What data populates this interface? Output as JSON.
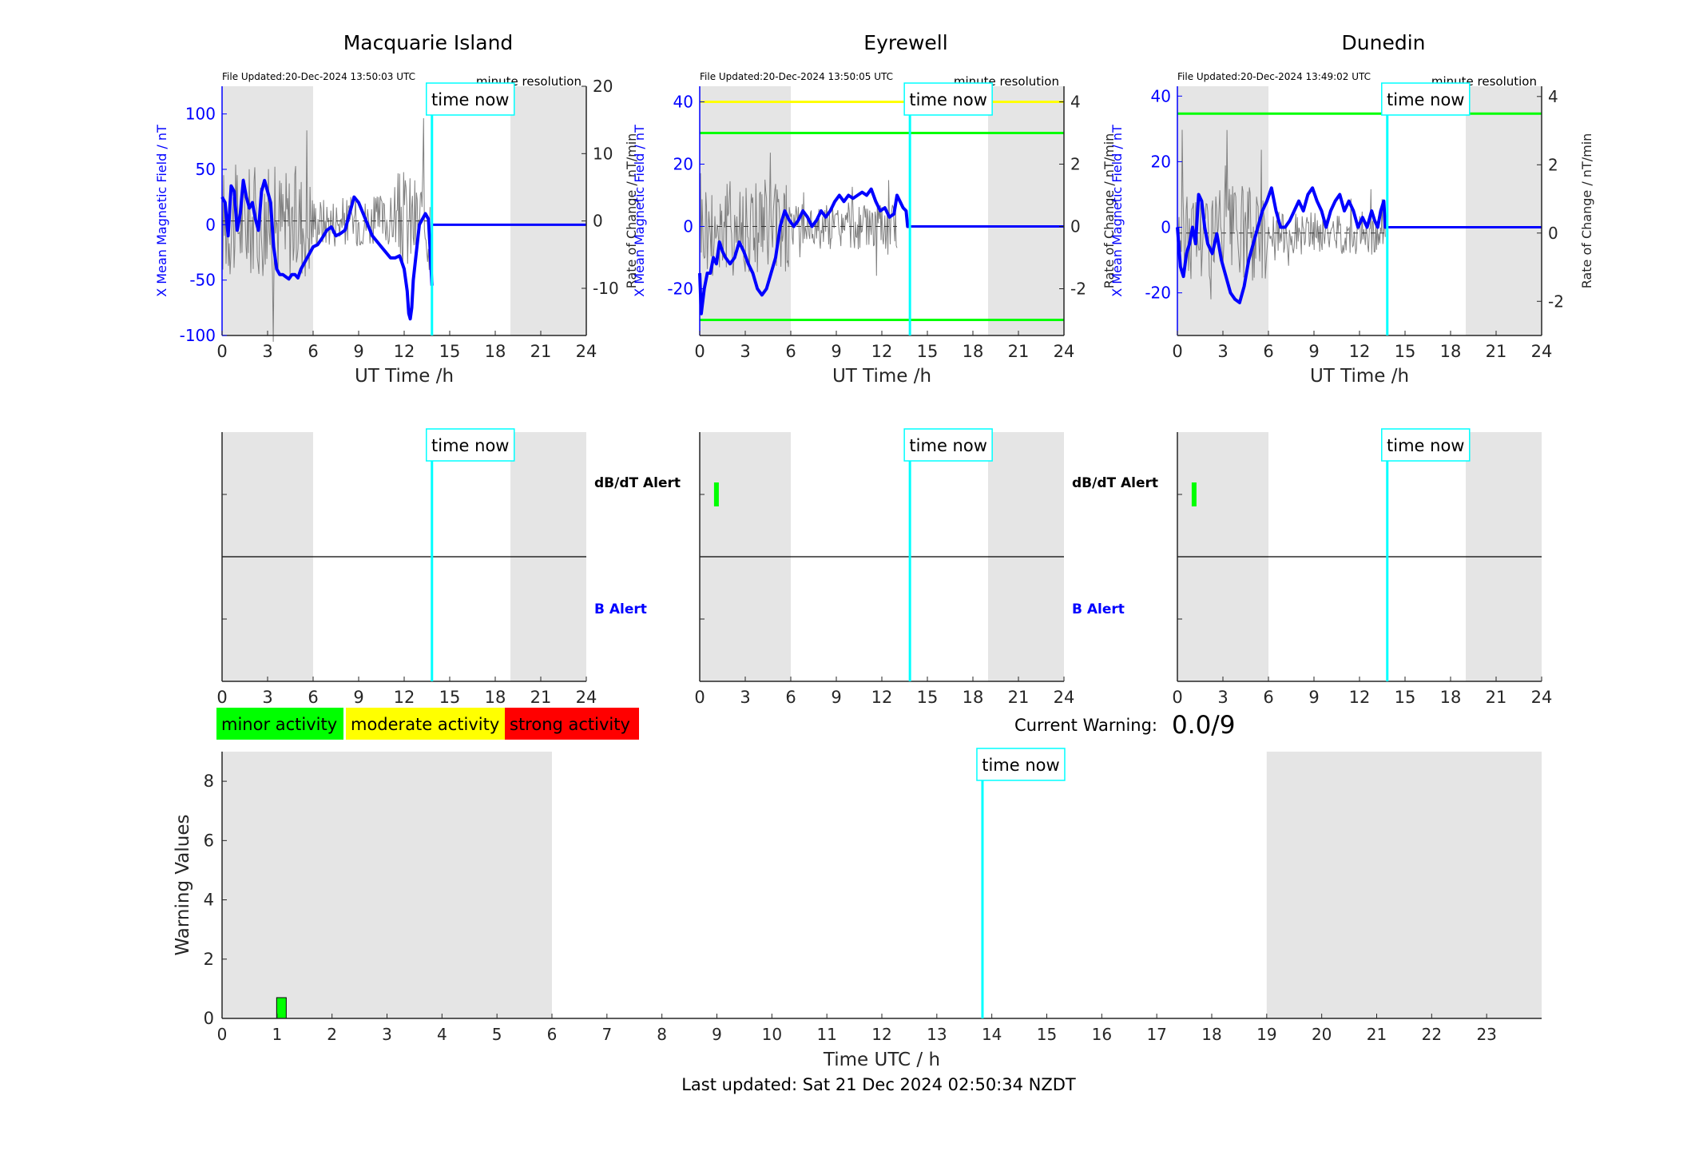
{
  "figure": {
    "current_warning_label": "Current Warning:",
    "current_warning_value": "0.0/9",
    "last_updated": "Last updated: Sat 21 Dec 2024 02:50:34 NZDT"
  },
  "legend": [
    {
      "label": "minor activity",
      "color": "#00ff00"
    },
    {
      "label": "moderate activity",
      "color": "#ffff00"
    },
    {
      "label": "strong activity",
      "color": "#ff0000"
    }
  ],
  "colors": {
    "field_line": "#0000ff",
    "rate_line": "#808080",
    "now_line": "#00ffff",
    "night_shade": "#e5e5e5",
    "minor_threshold": "#00ff00",
    "moderate_threshold": "#ffff00"
  },
  "chart_data": [
    {
      "id": "macquarie-field",
      "type": "line",
      "title": "Macquarie Island",
      "file_updated": "File Updated:20-Dec-2024 13:50:03 UTC",
      "resolution": "minute resolution",
      "now_label": "time now",
      "xlabel": "UT Time /h",
      "ylabel": "X Mean Magnetic Field / nT",
      "ylabel_right": "Rate of Change / nT/min",
      "xlim": [
        0,
        24
      ],
      "ylim": [
        -100,
        125
      ],
      "ylim_right": [
        -17,
        20
      ],
      "xticks": [
        0,
        3,
        6,
        9,
        12,
        15,
        18,
        21,
        24
      ],
      "yticks": [
        -100,
        -50,
        0,
        50,
        100
      ],
      "yticks_right": [
        -10,
        0,
        10,
        20
      ],
      "night": [
        [
          0,
          6
        ],
        [
          19,
          24
        ]
      ],
      "now": 13.83,
      "thresholds": [],
      "field": {
        "x": [
          0,
          0.2,
          0.4,
          0.6,
          0.8,
          1,
          1.2,
          1.4,
          1.6,
          1.8,
          2,
          2.2,
          2.4,
          2.6,
          2.8,
          3,
          3.2,
          3.4,
          3.6,
          3.8,
          4,
          4.2,
          4.4,
          4.6,
          4.8,
          5,
          5.2,
          5.4,
          5.6,
          5.8,
          6,
          6.3,
          6.6,
          6.9,
          7.2,
          7.5,
          7.8,
          8.1,
          8.4,
          8.7,
          9,
          9.3,
          9.6,
          9.9,
          10.2,
          10.5,
          10.8,
          11.1,
          11.4,
          11.7,
          12,
          12.2,
          12.3,
          12.4,
          12.5,
          12.6,
          12.8,
          13,
          13.2,
          13.4,
          13.6,
          13.7,
          13.83
        ],
        "y": [
          25,
          20,
          -10,
          35,
          30,
          -5,
          10,
          40,
          25,
          15,
          20,
          5,
          -5,
          30,
          40,
          30,
          20,
          -20,
          -40,
          -45,
          -45,
          -47,
          -49,
          -45,
          -45,
          -48,
          -40,
          -35,
          -30,
          -25,
          -20,
          -18,
          -12,
          -5,
          -2,
          -10,
          -8,
          -5,
          10,
          25,
          20,
          10,
          0,
          -10,
          -15,
          -20,
          -25,
          -30,
          -30,
          -28,
          -40,
          -60,
          -80,
          -85,
          -75,
          -50,
          -25,
          0,
          5,
          10,
          5,
          -20,
          -55
        ]
      },
      "field_after": {
        "x": [
          13.83,
          24
        ],
        "y": [
          0,
          0
        ]
      },
      "rate_range": [
        0,
        13.7
      ],
      "rate_amp": 12
    },
    {
      "id": "eyrewell-field",
      "type": "line",
      "title": "Eyrewell",
      "file_updated": "File Updated:20-Dec-2024 13:50:05 UTC",
      "resolution": "minute resolution",
      "now_label": "time now",
      "xlabel": "UT Time /h",
      "ylabel": "X Mean Magnetic Field / nT",
      "ylabel_right": "Rate of Change / nT/min",
      "xlim": [
        0,
        24
      ],
      "ylim": [
        -35,
        45
      ],
      "ylim_right": [
        -3.5,
        4.5
      ],
      "xticks": [
        0,
        3,
        6,
        9,
        12,
        15,
        18,
        21,
        24
      ],
      "yticks": [
        -20,
        0,
        20,
        40
      ],
      "yticks_right": [
        -2,
        0,
        2,
        4
      ],
      "night": [
        [
          0,
          6
        ],
        [
          19,
          24
        ]
      ],
      "now": 13.85,
      "thresholds": [
        {
          "value": 4,
          "color": "#ffff00"
        },
        {
          "value": 3,
          "color": "#00ff00"
        },
        {
          "value": -3,
          "color": "#00ff00"
        }
      ],
      "field": {
        "x": [
          0,
          0.1,
          0.3,
          0.5,
          0.7,
          0.9,
          1.1,
          1.3,
          1.5,
          1.7,
          2,
          2.3,
          2.6,
          2.9,
          3.2,
          3.5,
          3.8,
          4.1,
          4.4,
          4.7,
          5,
          5.3,
          5.6,
          5.9,
          6.2,
          6.5,
          6.8,
          7.1,
          7.4,
          7.7,
          8,
          8.3,
          8.6,
          8.9,
          9.2,
          9.5,
          9.8,
          10.1,
          10.4,
          10.7,
          11,
          11.3,
          11.6,
          11.9,
          12.2,
          12.5,
          12.8,
          13,
          13.2,
          13.4,
          13.6,
          13.7,
          13.85
        ],
        "y": [
          -15,
          -28,
          -20,
          -15,
          -15,
          -10,
          -12,
          -5,
          -8,
          -10,
          -12,
          -10,
          -5,
          -8,
          -12,
          -15,
          -20,
          -22,
          -20,
          -15,
          -10,
          0,
          5,
          2,
          0,
          2,
          5,
          3,
          0,
          2,
          5,
          3,
          5,
          8,
          10,
          8,
          10,
          9,
          10,
          11,
          10,
          12,
          8,
          5,
          6,
          3,
          4,
          10,
          8,
          6,
          5,
          0,
          0
        ]
      },
      "field_after": {
        "x": [
          13.85,
          24
        ],
        "y": [
          0,
          0
        ]
      },
      "rate_range": [
        0,
        13.0
      ],
      "rate_amp": 2.3
    },
    {
      "id": "dunedin-field",
      "type": "line",
      "title": "Dunedin",
      "file_updated": "File Updated:20-Dec-2024 13:49:02 UTC",
      "resolution": "minute resolution",
      "now_label": "time now",
      "xlabel": "UT Time /h",
      "ylabel": "X Mean Magnetic Field / nT",
      "ylabel_right": "Rate of Change / nT/min",
      "xlim": [
        0,
        24
      ],
      "ylim": [
        -33,
        43
      ],
      "ylim_right": [
        -3.0,
        4.3
      ],
      "xticks": [
        0,
        3,
        6,
        9,
        12,
        15,
        18,
        21,
        24
      ],
      "yticks": [
        -20,
        0,
        20,
        40
      ],
      "yticks_right": [
        -2,
        0,
        2,
        4
      ],
      "night": [
        [
          0,
          6
        ],
        [
          19,
          24
        ]
      ],
      "now": 13.83,
      "thresholds": [
        {
          "value": 3.5,
          "color": "#00ff00"
        }
      ],
      "field": {
        "x": [
          0,
          0.2,
          0.4,
          0.6,
          0.8,
          1,
          1.2,
          1.4,
          1.6,
          1.8,
          2,
          2.3,
          2.6,
          2.9,
          3.2,
          3.5,
          3.8,
          4.1,
          4.4,
          4.7,
          5,
          5.3,
          5.6,
          5.9,
          6.2,
          6.5,
          6.8,
          7.1,
          7.4,
          7.7,
          8,
          8.3,
          8.6,
          8.9,
          9.2,
          9.5,
          9.8,
          10.1,
          10.4,
          10.7,
          11,
          11.3,
          11.6,
          11.9,
          12.2,
          12.5,
          12.8,
          13,
          13.2,
          13.4,
          13.6,
          13.7,
          13.83
        ],
        "y": [
          0,
          -12,
          -15,
          -8,
          -5,
          0,
          -5,
          10,
          8,
          0,
          -5,
          -8,
          -2,
          -10,
          -15,
          -20,
          -22,
          -23,
          -18,
          -10,
          -5,
          0,
          5,
          8,
          12,
          5,
          0,
          0,
          2,
          5,
          8,
          5,
          10,
          12,
          8,
          5,
          0,
          5,
          8,
          10,
          5,
          8,
          5,
          0,
          3,
          0,
          5,
          2,
          0,
          5,
          8,
          0,
          0
        ]
      },
      "field_after": {
        "x": [
          13.83,
          24
        ],
        "y": [
          0,
          0
        ]
      },
      "rate_range": [
        0,
        13.7
      ],
      "rate_amp": 2.0
    },
    {
      "id": "macquarie-alert",
      "type": "bar",
      "upper_label": "dB/dT Alert",
      "lower_label": "B Alert",
      "now_label": "time now",
      "xlim": [
        0,
        24
      ],
      "xticks": [
        0,
        3,
        6,
        9,
        12,
        15,
        18,
        21,
        24
      ],
      "night": [
        [
          0,
          6
        ],
        [
          19,
          24
        ]
      ],
      "now": 13.83,
      "alerts": []
    },
    {
      "id": "eyrewell-alert",
      "type": "bar",
      "upper_label": "dB/dT Alert",
      "lower_label": "B Alert",
      "now_label": "time now",
      "xlim": [
        0,
        24
      ],
      "xticks": [
        0,
        3,
        6,
        9,
        12,
        15,
        18,
        21,
        24
      ],
      "night": [
        [
          0,
          6
        ],
        [
          19,
          24
        ]
      ],
      "now": 13.85,
      "alerts": [
        {
          "x": 1.1,
          "level": "minor",
          "band": "dB/dT Alert"
        }
      ]
    },
    {
      "id": "dunedin-alert",
      "type": "bar",
      "now_label": "time now",
      "xlim": [
        0,
        24
      ],
      "xticks": [
        0,
        3,
        6,
        9,
        12,
        15,
        18,
        21,
        24
      ],
      "night": [
        [
          0,
          6
        ],
        [
          19,
          24
        ]
      ],
      "now": 13.83,
      "alerts": [
        {
          "x": 1.1,
          "level": "minor",
          "band": "dB/dT Alert"
        }
      ]
    },
    {
      "id": "warning-values",
      "type": "bar",
      "xlabel": "Time UTC / h",
      "ylabel": "Warning Values",
      "now_label": "time now",
      "xlim": [
        0,
        24
      ],
      "ylim": [
        0,
        9
      ],
      "xticks": [
        0,
        1,
        2,
        3,
        4,
        5,
        6,
        7,
        8,
        9,
        10,
        11,
        12,
        13,
        14,
        15,
        16,
        17,
        18,
        19,
        20,
        21,
        22,
        23
      ],
      "yticks": [
        0,
        2,
        4,
        6,
        8
      ],
      "night": [
        [
          0,
          6
        ],
        [
          19,
          24
        ]
      ],
      "now": 13.83,
      "bars": [
        {
          "x": 1.08,
          "value": 0.7,
          "level": "minor"
        }
      ]
    }
  ]
}
